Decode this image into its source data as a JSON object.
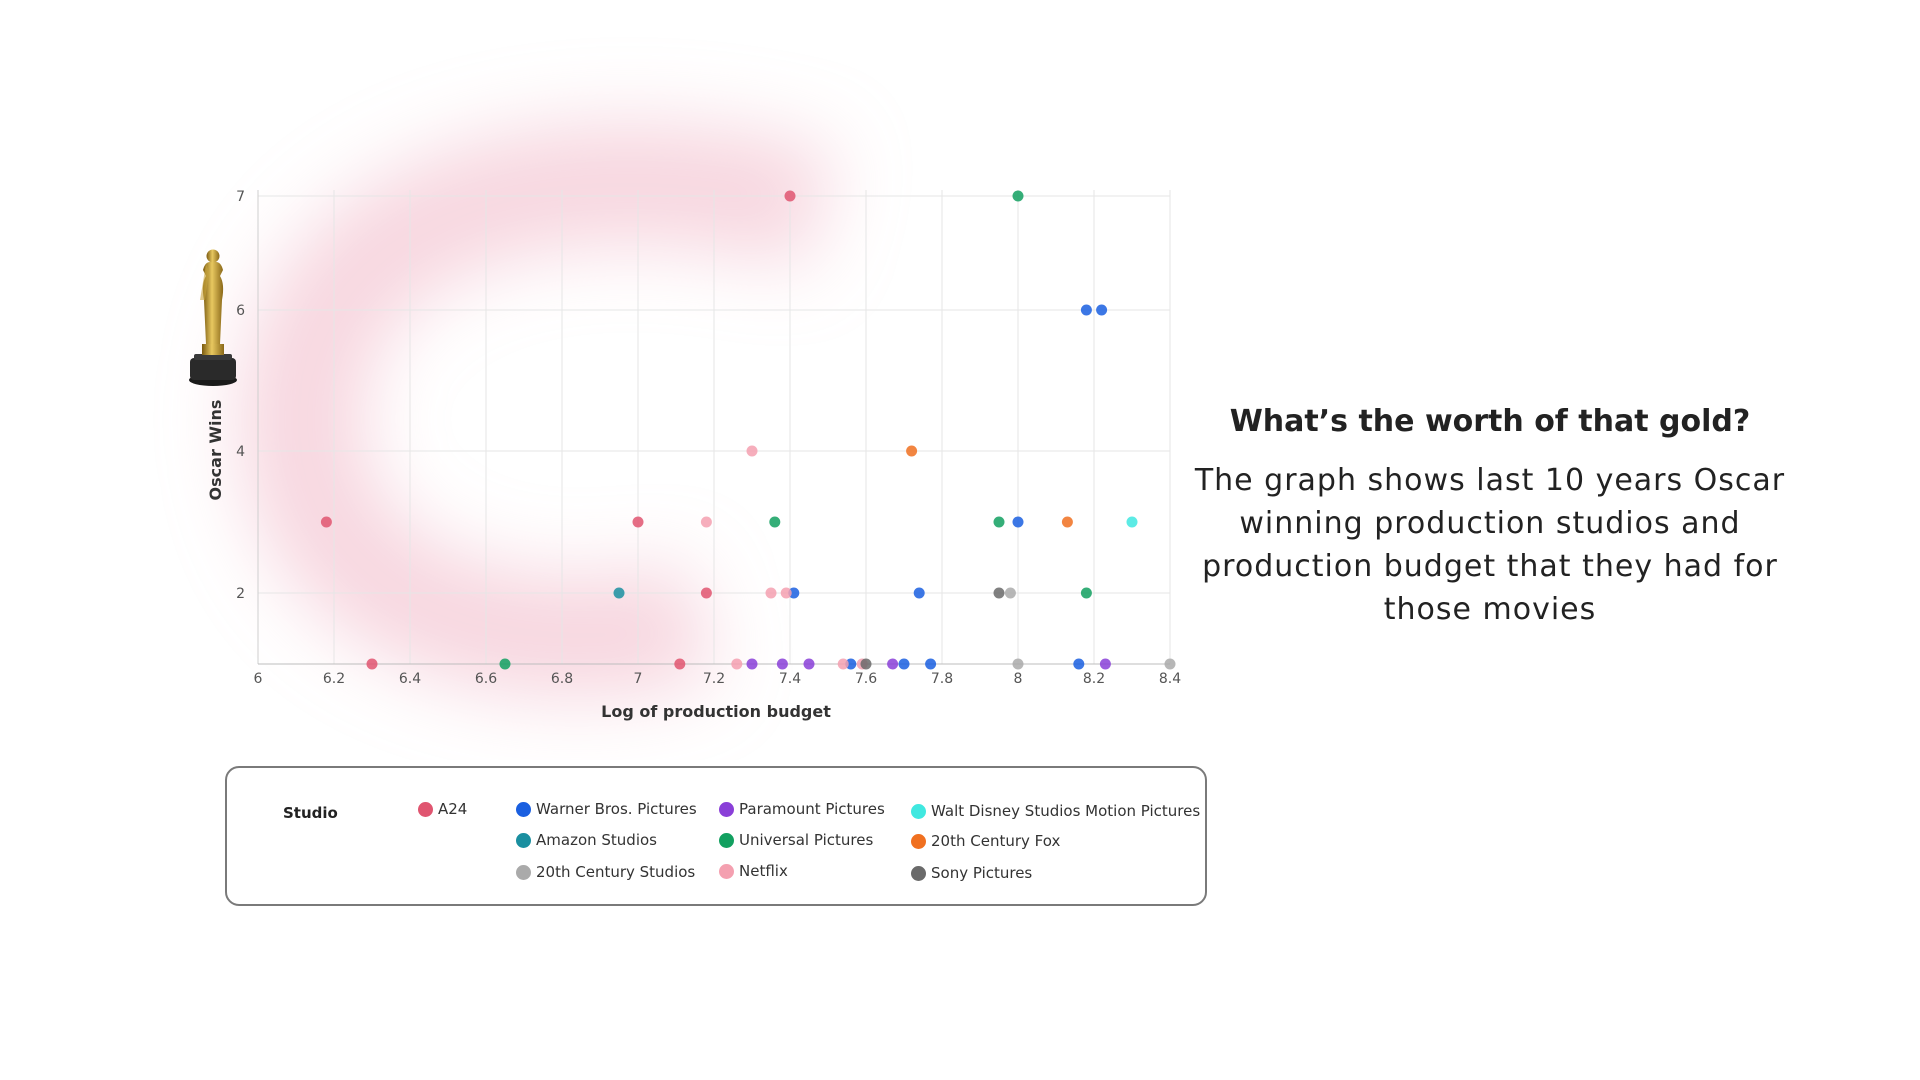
{
  "side_panel": {
    "heading": "What’s the worth of that gold?",
    "body": "The graph shows last 10 years Oscar winning production studios and production budget that they had for those movies"
  },
  "legend": {
    "title": "Studio",
    "items": [
      {
        "label": "A24",
        "color": "#e05570"
      },
      {
        "label": "Warner Bros. Pictures",
        "color": "#1a5fe0"
      },
      {
        "label": "Amazon Studios",
        "color": "#1a8fa0"
      },
      {
        "label": "20th Century Studios",
        "color": "#aaaaaa"
      },
      {
        "label": "Paramount Pictures",
        "color": "#8a3fd8"
      },
      {
        "label": "Universal Pictures",
        "color": "#12a060"
      },
      {
        "label": "Netflix",
        "color": "#f4a0b0"
      },
      {
        "label": "Walt Disney Studios Motion Pictures",
        "color": "#40e8e0"
      },
      {
        "label": "20th Century Fox",
        "color": "#f07020"
      },
      {
        "label": "Sony Pictures",
        "color": "#6a6a6a"
      }
    ]
  },
  "decoration": {
    "trophy": "oscar-statuette-icon"
  },
  "chart_data": {
    "type": "scatter",
    "title": "",
    "xlabel": "Log of production budget",
    "ylabel": "Oscar Wins",
    "xlim": [
      6,
      8.4
    ],
    "ylim": [
      1,
      7
    ],
    "xticks": [
      "6",
      "6.2",
      "6.4",
      "6.6",
      "6.8",
      "7",
      "7.2",
      "7.4",
      "7.6",
      "7.8",
      "8",
      "8.2",
      "8.4"
    ],
    "yticks": [
      "2",
      "4",
      "6",
      "7"
    ],
    "grid": true,
    "legend_position": "bottom",
    "series": [
      {
        "name": "A24",
        "points": [
          [
            6.18,
            3
          ],
          [
            6.3,
            1
          ],
          [
            7.0,
            3
          ],
          [
            7.11,
            1
          ],
          [
            7.18,
            2
          ],
          [
            7.4,
            7
          ]
        ]
      },
      {
        "name": "Warner Bros. Pictures",
        "points": [
          [
            7.41,
            2
          ],
          [
            7.56,
            1
          ],
          [
            7.7,
            1
          ],
          [
            7.74,
            2
          ],
          [
            7.77,
            1
          ],
          [
            8.0,
            3
          ],
          [
            8.16,
            1
          ],
          [
            8.18,
            6
          ],
          [
            8.22,
            6
          ]
        ]
      },
      {
        "name": "Amazon Studios",
        "points": [
          [
            6.95,
            2
          ]
        ]
      },
      {
        "name": "20th Century Studios",
        "points": [
          [
            7.98,
            2
          ],
          [
            8.0,
            1
          ],
          [
            8.4,
            1
          ]
        ]
      },
      {
        "name": "Paramount Pictures",
        "points": [
          [
            7.3,
            1
          ],
          [
            7.38,
            1
          ],
          [
            7.45,
            1
          ],
          [
            7.67,
            1
          ],
          [
            8.23,
            1
          ]
        ]
      },
      {
        "name": "Universal Pictures",
        "points": [
          [
            6.65,
            1
          ],
          [
            7.36,
            3
          ],
          [
            7.95,
            3
          ],
          [
            8.0,
            7
          ],
          [
            8.18,
            2
          ]
        ]
      },
      {
        "name": "Netflix",
        "points": [
          [
            7.18,
            3
          ],
          [
            7.26,
            1
          ],
          [
            7.3,
            4
          ],
          [
            7.35,
            2
          ],
          [
            7.39,
            2
          ],
          [
            7.54,
            1
          ],
          [
            7.59,
            1
          ]
        ]
      },
      {
        "name": "Walt Disney Studios Motion Pictures",
        "points": [
          [
            8.3,
            3
          ]
        ]
      },
      {
        "name": "20th Century Fox",
        "points": [
          [
            7.72,
            4
          ],
          [
            8.13,
            3
          ]
        ]
      },
      {
        "name": "Sony Pictures",
        "points": [
          [
            7.95,
            2
          ],
          [
            7.6,
            1
          ]
        ]
      }
    ]
  }
}
